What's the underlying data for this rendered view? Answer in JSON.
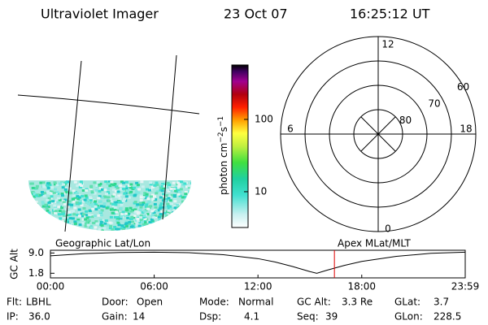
{
  "header": {
    "instrument": "Ultraviolet Imager",
    "date": "23 Oct 07",
    "time": "16:25:12 UT"
  },
  "colorbar": {
    "label": "photon cm",
    "exp1": "−2",
    "unit2": "s",
    "exp2": "−1",
    "log": true,
    "lim": [
      3.2,
      565
    ],
    "ticks": [
      10,
      100
    ]
  },
  "polar": {
    "mlt_labels": [
      12,
      18,
      6,
      0
    ],
    "lat_labels": [
      60,
      70,
      80
    ]
  },
  "altitude": {
    "ylabel": "GC Alt",
    "left_title": "Geographic Lat/Lon",
    "right_title": "Apex MLat/MLT",
    "ylim": [
      0.16,
      9.98
    ],
    "yticks": [
      {
        "value": 9.0,
        "label": "9.0"
      },
      1.8
    ],
    "xlim": [
      0,
      23.9833
    ],
    "xticks": [
      {
        "value": 0,
        "label": "00:00"
      },
      {
        "value": 6,
        "label": "06:00"
      },
      {
        "value": 12,
        "label": "12:00"
      },
      {
        "value": 18,
        "label": "18:00"
      },
      {
        "value": 23.9833,
        "label": "23:59"
      }
    ],
    "x": [
      0,
      2,
      4,
      6,
      8,
      10,
      12,
      13,
      14,
      15,
      15.4,
      16,
      17,
      18,
      20,
      22,
      23.9833
    ],
    "values": [
      8.0,
      8.8,
      9.2,
      9.3,
      9.1,
      8.4,
      7.0,
      5.8,
      4.2,
      2.4,
      1.8,
      2.9,
      4.6,
      6.0,
      7.8,
      8.9,
      9.3
    ],
    "marker": 16.42,
    "marker_color": "#e00000"
  },
  "status": {
    "rows": [
      [
        {
          "label": "Flt:",
          "value": "LBHL"
        },
        {
          "label": "Door:",
          "value": "Open"
        },
        {
          "label": "Mode:",
          "value": "Normal"
        },
        {
          "label": "GC Alt:",
          "value": "3.3 Re"
        },
        {
          "label": "GLat:",
          "value": "3.7"
        }
      ],
      [
        {
          "label": "IP:",
          "value": "36.0"
        },
        {
          "label": "Gain:",
          "value": "14"
        },
        {
          "label": "Dsp:",
          "value": "4.1"
        },
        {
          "label": "Seq:",
          "value": "39"
        },
        {
          "label": "GLon:",
          "value": "228.5"
        }
      ]
    ]
  }
}
